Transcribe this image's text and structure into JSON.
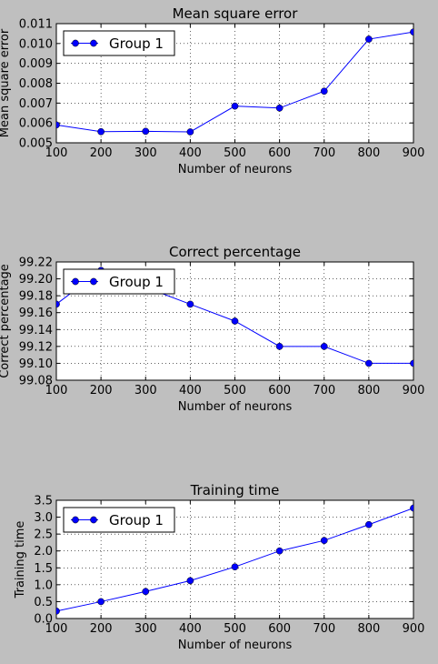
{
  "chart_data": [
    {
      "type": "line",
      "title": "Mean square error",
      "xlabel": "Number of neurons",
      "ylabel": "Mean square error",
      "x": [
        100,
        200,
        300,
        400,
        500,
        600,
        700,
        800,
        900
      ],
      "xlim": [
        100,
        900
      ],
      "ylim": [
        0.005,
        0.011
      ],
      "xticks": [
        "100",
        "200",
        "300",
        "400",
        "500",
        "600",
        "700",
        "800",
        "900"
      ],
      "yticks": [
        "0.005",
        "0.006",
        "0.007",
        "0.008",
        "0.009",
        "0.010",
        "0.011"
      ],
      "grid": true,
      "legend_position": "top-left",
      "series": [
        {
          "name": "Group 1",
          "color": "#0000ff",
          "values": [
            0.0059,
            0.00556,
            0.00558,
            0.00555,
            0.00685,
            0.00675,
            0.0076,
            0.01022,
            0.01058
          ]
        }
      ]
    },
    {
      "type": "line",
      "title": "Correct percentage",
      "xlabel": "Number of neurons",
      "ylabel": "Correct percentage",
      "x": [
        100,
        200,
        300,
        400,
        500,
        600,
        700,
        800,
        900
      ],
      "xlim": [
        100,
        900
      ],
      "ylim": [
        99.08,
        99.22
      ],
      "xticks": [
        "100",
        "200",
        "300",
        "400",
        "500",
        "600",
        "700",
        "800",
        "900"
      ],
      "yticks": [
        "99.08",
        "99.10",
        "99.12",
        "99.14",
        "99.16",
        "99.18",
        "99.20",
        "99.22"
      ],
      "grid": true,
      "legend_position": "top-left",
      "series": [
        {
          "name": "Group 1",
          "color": "#0000ff",
          "values": [
            99.17,
            99.21,
            99.19,
            99.17,
            99.15,
            99.12,
            99.12,
            99.1,
            99.1
          ]
        }
      ]
    },
    {
      "type": "line",
      "title": "Training time",
      "xlabel": "Number of neurons",
      "ylabel": "Training time",
      "x": [
        100,
        200,
        300,
        400,
        500,
        600,
        700,
        800,
        900
      ],
      "xlim": [
        100,
        900
      ],
      "ylim": [
        0,
        3.5
      ],
      "xticks": [
        "100",
        "200",
        "300",
        "400",
        "500",
        "600",
        "700",
        "800",
        "900"
      ],
      "yticks": [
        "0.0",
        "0.5",
        "1.0",
        "1.5",
        "2.0",
        "2.5",
        "3.0",
        "3.5"
      ],
      "grid": true,
      "legend_position": "top-left",
      "series": [
        {
          "name": "Group 1",
          "color": "#0000ff",
          "values": [
            0.22,
            0.5,
            0.8,
            1.12,
            1.53,
            2.0,
            2.31,
            2.78,
            3.27
          ]
        }
      ]
    }
  ]
}
